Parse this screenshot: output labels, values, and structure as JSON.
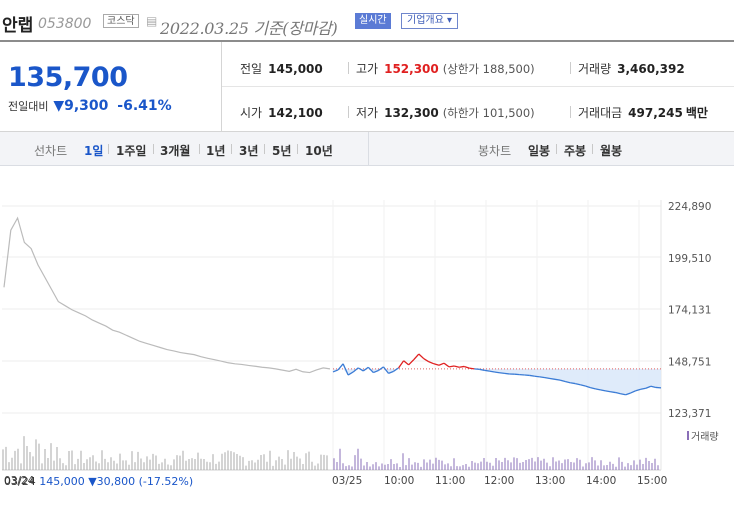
{
  "header": {
    "name": "안랩",
    "code": "053800",
    "market": "코스닥",
    "date": "2022.03.25",
    "date_suffix": "기준(장마감)",
    "realtime_label": "실시간",
    "company_label": "기업개요 ▾"
  },
  "price": {
    "current": "135,700",
    "change_label": "전일대비",
    "change": "▼9,300",
    "change_pct": "-6.41%"
  },
  "info": {
    "prev_label": "전일",
    "prev": "145,000",
    "high_label": "고가",
    "high": "152,300",
    "upper_limit": "(상한가 188,500)",
    "volume_label": "거래량",
    "volume": "3,460,392",
    "open_label": "시가",
    "open": "142,100",
    "low_label": "저가",
    "low": "132,300",
    "lower_limit": "(하한가 101,500)",
    "amount_label": "거래대금",
    "amount": "497,245",
    "amount_unit": "백만"
  },
  "tabs": {
    "line_label": "선차트",
    "line_tabs": [
      "1일",
      "1주일",
      "3개월",
      "1년",
      "3년",
      "5년",
      "10년"
    ],
    "candle_label": "봉차트",
    "candle_tabs": [
      "일봉",
      "주봉",
      "월봉"
    ]
  },
  "footer": {
    "prev_date": "03/24",
    "prev_info": "145,000 ▼30,800 (-17.52%)"
  },
  "chart_data": {
    "type": "line",
    "y_ticks": [
      "224,890",
      "199,510",
      "174,131",
      "148,751",
      "123,371"
    ],
    "ylim": [
      123371,
      224890
    ],
    "x_ticks": [
      "03/24",
      "03/25",
      "10:00",
      "11:00",
      "12:00",
      "13:00",
      "14:00",
      "15:00"
    ],
    "volume_label": "거래량",
    "reference_price": 145000,
    "colors": {
      "prev": "#bbbbbb",
      "up": "#e02020",
      "down": "#3a7bd5",
      "fill": "#dce9f9"
    },
    "series": [
      {
        "values": [
          185000,
          213000,
          219000,
          207000,
          204000,
          196000,
          190000,
          184000,
          178000,
          176000,
          174000,
          172500,
          171000,
          169000,
          167500,
          166000,
          164000,
          163000,
          161500,
          160000,
          158500,
          157500,
          156500,
          155500,
          154500,
          153800,
          153000,
          152500,
          152000,
          151000,
          150200,
          149500,
          148800,
          148000,
          147500,
          147200,
          146700,
          146300,
          145800,
          145500,
          145000,
          144400,
          143800,
          144800,
          143600,
          143200,
          144500,
          145500,
          145000
        ]
      },
      {
        "values": [
          143500,
          144500,
          147500,
          142000,
          143500,
          145500,
          144000,
          145800,
          143200,
          144200,
          146000,
          142800,
          143800,
          145500,
          149000,
          147000,
          149500,
          152300,
          150000,
          148500,
          147500,
          146800,
          147800,
          146000,
          146400,
          145800,
          146200,
          145400,
          145000,
          144800,
          144300,
          143900,
          143500,
          143100,
          142800,
          142500,
          142400,
          142200,
          142000,
          141800,
          141400,
          141100,
          140700,
          140300,
          139900,
          139500,
          138800,
          138200,
          137800,
          137200,
          136600,
          135800,
          135200,
          134700,
          134200,
          133800,
          133400,
          132800,
          132300,
          133200,
          134300,
          135000,
          135500,
          136500,
          135900,
          135700
        ]
      }
    ]
  }
}
